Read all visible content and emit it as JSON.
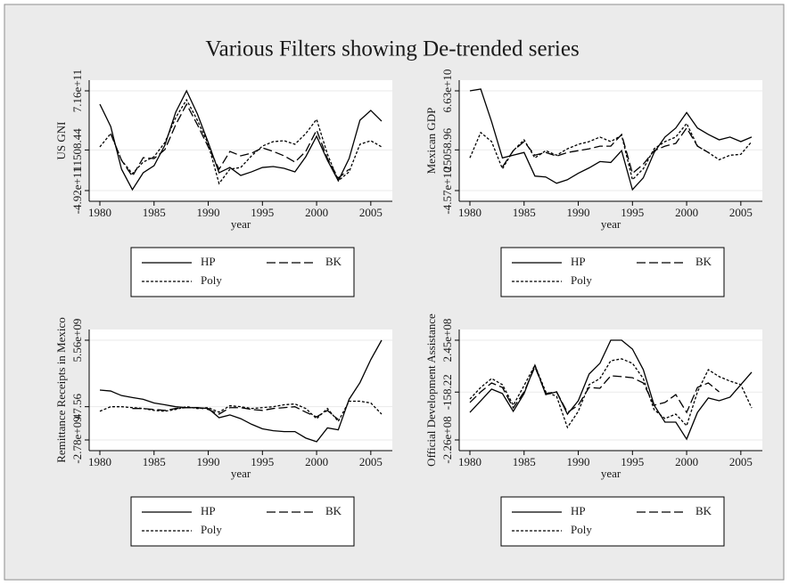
{
  "title": "Various Filters showing De-trended series",
  "chart_data": [
    {
      "type": "line",
      "ylabel": "US GNI",
      "xlabel": "year",
      "x": [
        1980,
        1981,
        1982,
        1983,
        1984,
        1985,
        1986,
        1987,
        1988,
        1989,
        1990,
        1991,
        1992,
        1993,
        1994,
        1995,
        1996,
        1997,
        1998,
        1999,
        2000,
        2001,
        2002,
        2003,
        2004,
        2005,
        2006
      ],
      "xlim": [
        1980,
        2006
      ],
      "xticks": [
        1980,
        1985,
        1990,
        1995,
        2000,
        2005
      ],
      "ylim": [
        -492000000000.0,
        716000000000.0
      ],
      "yticks": [
        {
          "value": -492000000000.0,
          "label": "-4.92e+11"
        },
        11508.44,
        {
          "value": 716000000000.0,
          "label": "7.16e+11"
        }
      ],
      "grid": true,
      "series": [
        {
          "name": "HP",
          "color": "#000000",
          "line_style": "solid",
          "values": [
            554000000000.0,
            285000000000.0,
            -233000000000.0,
            -481000000000.0,
            -276000000000.0,
            -190000000000.0,
            58000000000.0,
            457000000000.0,
            716000000000.0,
            436000000000.0,
            90000000000.0,
            -276000000000.0,
            -212000000000.0,
            -309000000000.0,
            -265000000000.0,
            -212000000000.0,
            -201000000000.0,
            -222000000000.0,
            -265000000000.0,
            -82000000000.0,
            166000000000.0,
            -125000000000.0,
            -373000000000.0,
            -104000000000.0,
            360000000000.0,
            479000000000.0,
            349000000000.0
          ]
        },
        {
          "name": "BK",
          "color": "#000000",
          "line_style": "dash",
          "values": [
            null,
            198000000000.0,
            -125000000000.0,
            -319000000000.0,
            -93000000000.0,
            -104000000000.0,
            4000000000.0,
            306000000000.0,
            554000000000.0,
            306000000000.0,
            37000000000.0,
            -233000000000.0,
            -18000000000.0,
            -71000000000.0,
            -39000000000.0,
            26000000000.0,
            -18000000000.0,
            -71000000000.0,
            -147000000000.0,
            -18000000000.0,
            241000000000.0,
            -104000000000.0,
            -341000000000.0,
            -233000000000.0,
            null,
            null,
            null
          ]
        },
        {
          "name": "Poly",
          "color": "#000000",
          "line_style": "dot",
          "values": [
            37000000000.0,
            198000000000.0,
            -125000000000.0,
            -287000000000.0,
            -147000000000.0,
            -82000000000.0,
            90000000000.0,
            392000000000.0,
            608000000000.0,
            360000000000.0,
            69000000000.0,
            -406000000000.0,
            -233000000000.0,
            -212000000000.0,
            -71000000000.0,
            47000000000.0,
            101000000000.0,
            112000000000.0,
            69000000000.0,
            198000000000.0,
            371000000000.0,
            -50000000000.0,
            -373000000000.0,
            -265000000000.0,
            69000000000.0,
            112000000000.0,
            37000000000.0
          ]
        }
      ]
    },
    {
      "type": "line",
      "ylabel": "Mexican GDP",
      "xlabel": "year",
      "x": [
        1980,
        1981,
        1982,
        1983,
        1984,
        1985,
        1986,
        1987,
        1988,
        1989,
        1990,
        1991,
        1992,
        1993,
        1994,
        1995,
        1996,
        1997,
        1998,
        1999,
        2000,
        2001,
        2002,
        2003,
        2004,
        2005,
        2006
      ],
      "xlim": [
        1980,
        2006
      ],
      "xticks": [
        1980,
        1985,
        1990,
        1995,
        2000,
        2005
      ],
      "ylim": [
        -45700000000.0,
        66300000000.0
      ],
      "yticks": [
        {
          "value": -45700000000.0,
          "label": "-4.57e+10"
        },
        25058.96,
        {
          "value": 66300000000.0,
          "label": "6.63e+10"
        }
      ],
      "grid": true,
      "series": [
        {
          "name": "HP",
          "color": "#000000",
          "line_style": "solid",
          "values": [
            66300000000.0,
            68300000000.0,
            31700000000.0,
            -9000000000.0,
            -6000000000.0,
            -2900000000.0,
            -29400000000.0,
            -30400000000.0,
            -37500000000.0,
            -33500000000.0,
            -26300000000.0,
            -20200000000.0,
            -13100000000.0,
            -14100000000.0,
            -900000000.0,
            -44700000000.0,
            -31400000000.0,
            -2900000000.0,
            14400000000.0,
            24600000000.0,
            41900000000.0,
            24600000000.0,
            17400000000.0,
            11300000000.0,
            14400000000.0,
            9300000000.0,
            14400000000.0
          ]
        },
        {
          "name": "BK",
          "color": "#000000",
          "line_style": "dash",
          "values": [
            null,
            null,
            null,
            -19200000000.0,
            -900000000.0,
            9300000000.0,
            -6000000000.0,
            -2900000000.0,
            -7000000000.0,
            -2900000000.0,
            -900000000.0,
            1200000000.0,
            4200000000.0,
            4200000000.0,
            17400000000.0,
            -26300000000.0,
            -16100000000.0,
            -900000000.0,
            4200000000.0,
            7300000000.0,
            24600000000.0,
            4200000000.0,
            -2900000000.0,
            null,
            null,
            null,
            null
          ]
        },
        {
          "name": "Poly",
          "color": "#000000",
          "line_style": "dot",
          "values": [
            -9000000000.0,
            19500000000.0,
            9300000000.0,
            -21200000000.0,
            -900000000.0,
            11300000000.0,
            -9000000000.0,
            -900000000.0,
            -6000000000.0,
            1200000000.0,
            6200000000.0,
            9300000000.0,
            14400000000.0,
            9300000000.0,
            16400000000.0,
            -33500000000.0,
            -21200000000.0,
            1200000000.0,
            9300000000.0,
            14400000000.0,
            29700000000.0,
            4200000000.0,
            -2900000000.0,
            -11100000000.0,
            -6000000000.0,
            -5000000000.0,
            9300000000.0
          ]
        }
      ]
    },
    {
      "type": "line",
      "ylabel": "Remittance Receipts in Mexico",
      "xlabel": "year",
      "x": [
        1980,
        1981,
        1982,
        1983,
        1984,
        1985,
        1986,
        1987,
        1988,
        1989,
        1990,
        1991,
        1992,
        1993,
        1994,
        1995,
        1996,
        1997,
        1998,
        1999,
        2000,
        2001,
        2002,
        2003,
        2004,
        2005,
        2006
      ],
      "xlim": [
        1980,
        2006
      ],
      "xticks": [
        1980,
        1985,
        1990,
        1995,
        2000,
        2005
      ],
      "ylim": [
        -2780000000.0,
        5560000000.0
      ],
      "yticks": [
        {
          "value": -2780000000.0,
          "label": "-2.78e+09"
        },
        47.56,
        {
          "value": 5560000000.0,
          "label": "5.56e+09"
        }
      ],
      "grid": true,
      "series": [
        {
          "name": "HP",
          "color": "#000000",
          "line_style": "solid",
          "values": [
            1390000000.0,
            1310000000.0,
            930000000.0,
            770000000.0,
            620000000.0,
            310000000.0,
            160000000.0,
            0.0,
            -80000000.0,
            -80000000.0,
            -150000000.0,
            -920000000.0,
            -690000000.0,
            -1000000000.0,
            -1470000000.0,
            -1850000000.0,
            -2010000000.0,
            -2080000000.0,
            -2080000000.0,
            -2620000000.0,
            -2930000000.0,
            -1770000000.0,
            -1930000000.0,
            620000000.0,
            2010000000.0,
            3940000000.0,
            5560000000.0
          ]
        },
        {
          "name": "BK",
          "color": "#000000",
          "line_style": "dash",
          "values": [
            null,
            null,
            null,
            -150000000.0,
            -150000000.0,
            -230000000.0,
            -310000000.0,
            -150000000.0,
            -80000000.0,
            -80000000.0,
            -230000000.0,
            -620000000.0,
            -80000000.0,
            -80000000.0,
            -230000000.0,
            -310000000.0,
            -150000000.0,
            -80000000.0,
            0.0,
            -460000000.0,
            -850000000.0,
            -310000000.0,
            -1080000000.0,
            null,
            null,
            null,
            null
          ]
        },
        {
          "name": "Poly",
          "color": "#000000",
          "line_style": "dot",
          "values": [
            -380000000.0,
            0.0,
            0.0,
            -80000000.0,
            -150000000.0,
            -310000000.0,
            -380000000.0,
            -230000000.0,
            0.0,
            -150000000.0,
            -80000000.0,
            -460000000.0,
            80000000.0,
            0.0,
            -150000000.0,
            -80000000.0,
            0.0,
            160000000.0,
            230000000.0,
            -150000000.0,
            -1000000000.0,
            -150000000.0,
            -1230000000.0,
            460000000.0,
            460000000.0,
            310000000.0,
            -620000000.0
          ]
        }
      ]
    },
    {
      "type": "line",
      "ylabel": "Official Development Assistance",
      "xlabel": "year",
      "x": [
        1980,
        1981,
        1982,
        1983,
        1984,
        1985,
        1986,
        1987,
        1988,
        1989,
        1990,
        1991,
        1992,
        1993,
        1994,
        1995,
        1996,
        1997,
        1998,
        1999,
        2000,
        2001,
        2002,
        2003,
        2004,
        2005,
        2006
      ],
      "xlim": [
        1980,
        2006
      ],
      "xticks": [
        1980,
        1985,
        1990,
        1995,
        2000,
        2005
      ],
      "ylim": [
        -226000000.0,
        245000000.0
      ],
      "yticks": [
        {
          "value": -226000000.0,
          "label": "-2.26e+08"
        },
        -158.22,
        {
          "value": 245000000.0,
          "label": "2.45e+08"
        }
      ],
      "grid": true,
      "series": [
        {
          "name": "HP",
          "color": "#000000",
          "line_style": "solid",
          "values": [
            -96000000.0,
            -41000000.0,
            14000000.0,
            -7000000.0,
            -91000000.0,
            -7000000.0,
            127000000.0,
            -12000000.0,
            1000000.0,
            -104000000.0,
            -41000000.0,
            85000000.0,
            136000000.0,
            245000000.0,
            245000000.0,
            203000000.0,
            106000000.0,
            -62000000.0,
            -142000000.0,
            -142000000.0,
            -222000000.0,
            -96000000.0,
            -28000000.0,
            -41000000.0,
            -24000000.0,
            35000000.0,
            94000000.0
          ]
        },
        {
          "name": "BK",
          "color": "#000000",
          "line_style": "dash",
          "values": [
            -49000000.0,
            1000000.0,
            43000000.0,
            22000000.0,
            -75000000.0,
            1000000.0,
            119000000.0,
            -7000000.0,
            1000000.0,
            -96000000.0,
            -62000000.0,
            22000000.0,
            18000000.0,
            77000000.0,
            73000000.0,
            68000000.0,
            43000000.0,
            -62000000.0,
            -49000000.0,
            -12000000.0,
            -96000000.0,
            22000000.0,
            43000000.0,
            1000000.0,
            null,
            null,
            null
          ]
        },
        {
          "name": "Poly",
          "color": "#000000",
          "line_style": "dot",
          "values": [
            -33000000.0,
            22000000.0,
            64000000.0,
            35000000.0,
            -62000000.0,
            31000000.0,
            127000000.0,
            1000000.0,
            -20000000.0,
            -167000000.0,
            -91000000.0,
            35000000.0,
            64000000.0,
            148000000.0,
            157000000.0,
            136000000.0,
            64000000.0,
            -83000000.0,
            -125000000.0,
            -104000000.0,
            -159000000.0,
            1000000.0,
            106000000.0,
            73000000.0,
            52000000.0,
            35000000.0,
            -75000000.0
          ]
        }
      ]
    }
  ]
}
